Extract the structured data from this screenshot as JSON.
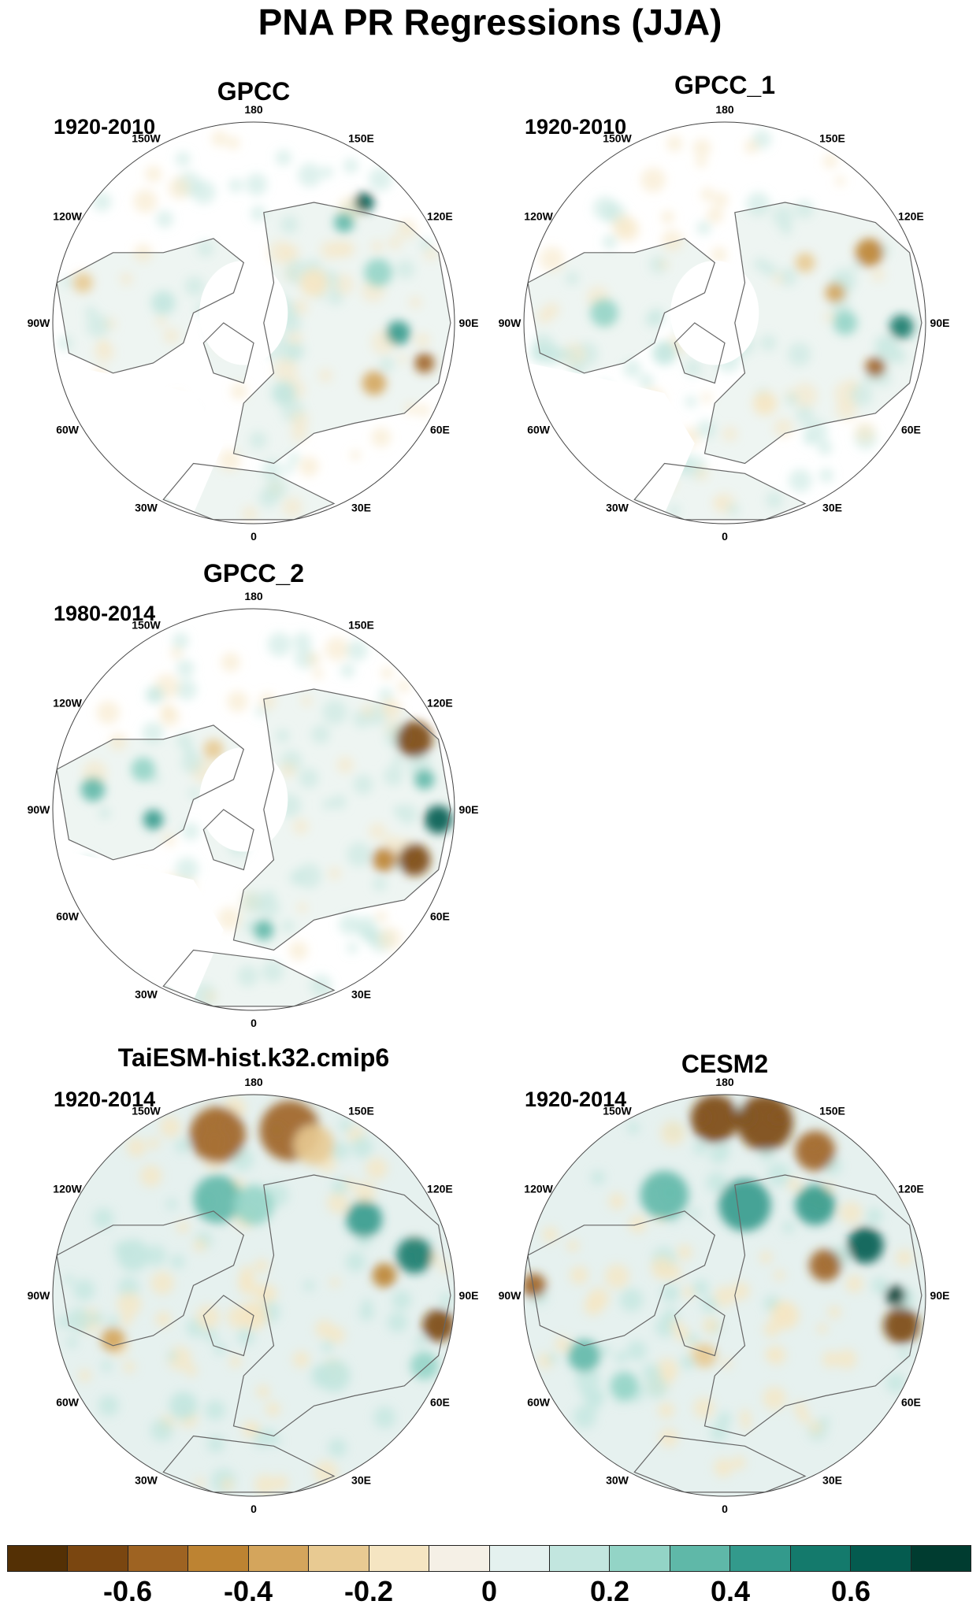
{
  "title": "PNA PR Regressions (JJA)",
  "longitude_labels": [
    "180",
    "150E",
    "120E",
    "90E",
    "60E",
    "30E",
    "0",
    "30W",
    "60W",
    "90W",
    "120W",
    "150W"
  ],
  "panels": [
    {
      "title": "GPCC",
      "period": "1920-2010",
      "kind": "obs",
      "dataset": 0
    },
    {
      "title": "GPCC_1",
      "period": "1920-2010",
      "kind": "obs",
      "dataset": 1
    },
    {
      "title": "GPCC_2",
      "period": "1980-2014",
      "kind": "obs",
      "dataset": 2
    },
    {
      "title": "TaiESM-hist.k32.cmip6",
      "period": "1920-2014",
      "kind": "model",
      "dataset": 3
    },
    {
      "title": "CESM2",
      "period": "1920-2014",
      "kind": "model",
      "dataset": 4
    }
  ],
  "colorbar": {
    "colors": [
      "#543005",
      "#7a4610",
      "#9e6322",
      "#bd8332",
      "#d4a55c",
      "#e8ca92",
      "#f5e5c2",
      "#f5f0e6",
      "#e4f1ef",
      "#c2e6df",
      "#93d4c6",
      "#5fb8a8",
      "#339a8c",
      "#147a6c",
      "#045b4f",
      "#003c30"
    ],
    "labels": [
      "-0.6",
      "-0.4",
      "-0.2",
      "0",
      "0.2",
      "0.4",
      "0.6"
    ],
    "label_values": [
      -0.6,
      -0.4,
      -0.2,
      0,
      0.2,
      0.4,
      0.6
    ],
    "min": -0.8,
    "max": 0.8
  }
}
